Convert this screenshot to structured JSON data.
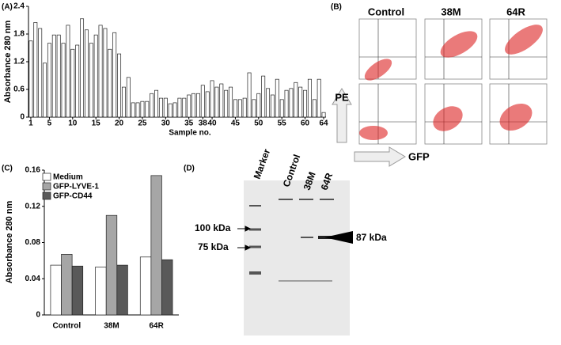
{
  "chart_data": [
    {
      "type": "bar",
      "panel_label": "(A)",
      "y_label": "Absorbance 280 nm",
      "x_label": "Sample no.",
      "color": "#ffffff",
      "categories": [
        "1",
        null,
        null,
        null,
        "5",
        null,
        null,
        null,
        null,
        "10",
        null,
        null,
        null,
        null,
        "15",
        null,
        null,
        null,
        null,
        "20",
        null,
        null,
        null,
        null,
        "25",
        null,
        null,
        null,
        null,
        "30",
        null,
        null,
        null,
        null,
        "35",
        null,
        null,
        "38",
        null,
        "40",
        null,
        null,
        null,
        null,
        "45",
        null,
        null,
        null,
        null,
        "50",
        null,
        null,
        null,
        null,
        "55",
        null,
        null,
        null,
        null,
        "60",
        null,
        null,
        null,
        "64"
      ],
      "values": [
        1.65,
        2.05,
        1.92,
        1.17,
        1.6,
        1.78,
        1.78,
        1.6,
        1.99,
        1.47,
        1.56,
        2.13,
        1.89,
        1.6,
        1.78,
        1.99,
        1.92,
        1.47,
        1.83,
        1.37,
        0.65,
        0.86,
        0.31,
        0.31,
        0.34,
        0.34,
        0.51,
        0.58,
        0.41,
        0.41,
        0.29,
        0.31,
        0.41,
        0.41,
        0.48,
        0.51,
        0.51,
        0.69,
        0.55,
        0.79,
        0.65,
        0.72,
        0.58,
        0.65,
        0.38,
        0.38,
        0.41,
        0.96,
        0.38,
        0.51,
        0.89,
        0.62,
        0.48,
        0.82,
        0.38,
        0.58,
        0.62,
        0.75,
        0.65,
        0.58,
        0.82,
        0.38,
        0.82,
        0.1
      ],
      "ylim": [
        0,
        2.4
      ],
      "yticks": [
        0,
        0.6,
        1.2,
        1.8,
        2.4
      ]
    },
    {
      "type": "grouped-bar",
      "panel_label": "(C)",
      "y_label": "Absorbance 280 nm",
      "categories": [
        "Control",
        "38M",
        "64R"
      ],
      "series": [
        {
          "name": "Medium",
          "color": "#ffffff",
          "values": [
            0.055,
            0.053,
            0.064
          ]
        },
        {
          "name": "GFP-LYVE-1",
          "color": "#a6a6a6",
          "values": [
            0.067,
            0.11,
            0.154
          ]
        },
        {
          "name": "GFP-CD44",
          "color": "#595959",
          "values": [
            0.054,
            0.055,
            0.061
          ]
        }
      ],
      "ylim": [
        0,
        0.16
      ],
      "yticks": [
        0,
        0.04,
        0.08,
        0.12,
        0.16
      ]
    }
  ],
  "flow_panel": {
    "panel_label": "(B)",
    "columns": [
      "Control",
      "38M",
      "64R"
    ],
    "y_axis": "PE",
    "x_axis": "GFP"
  },
  "gel_panel": {
    "panel_label": "(D)",
    "lanes": [
      "Marker",
      "Control",
      "38M",
      "64R"
    ],
    "markers": [
      "100 kDa",
      "75 kDa"
    ],
    "band": "87 kDa"
  }
}
